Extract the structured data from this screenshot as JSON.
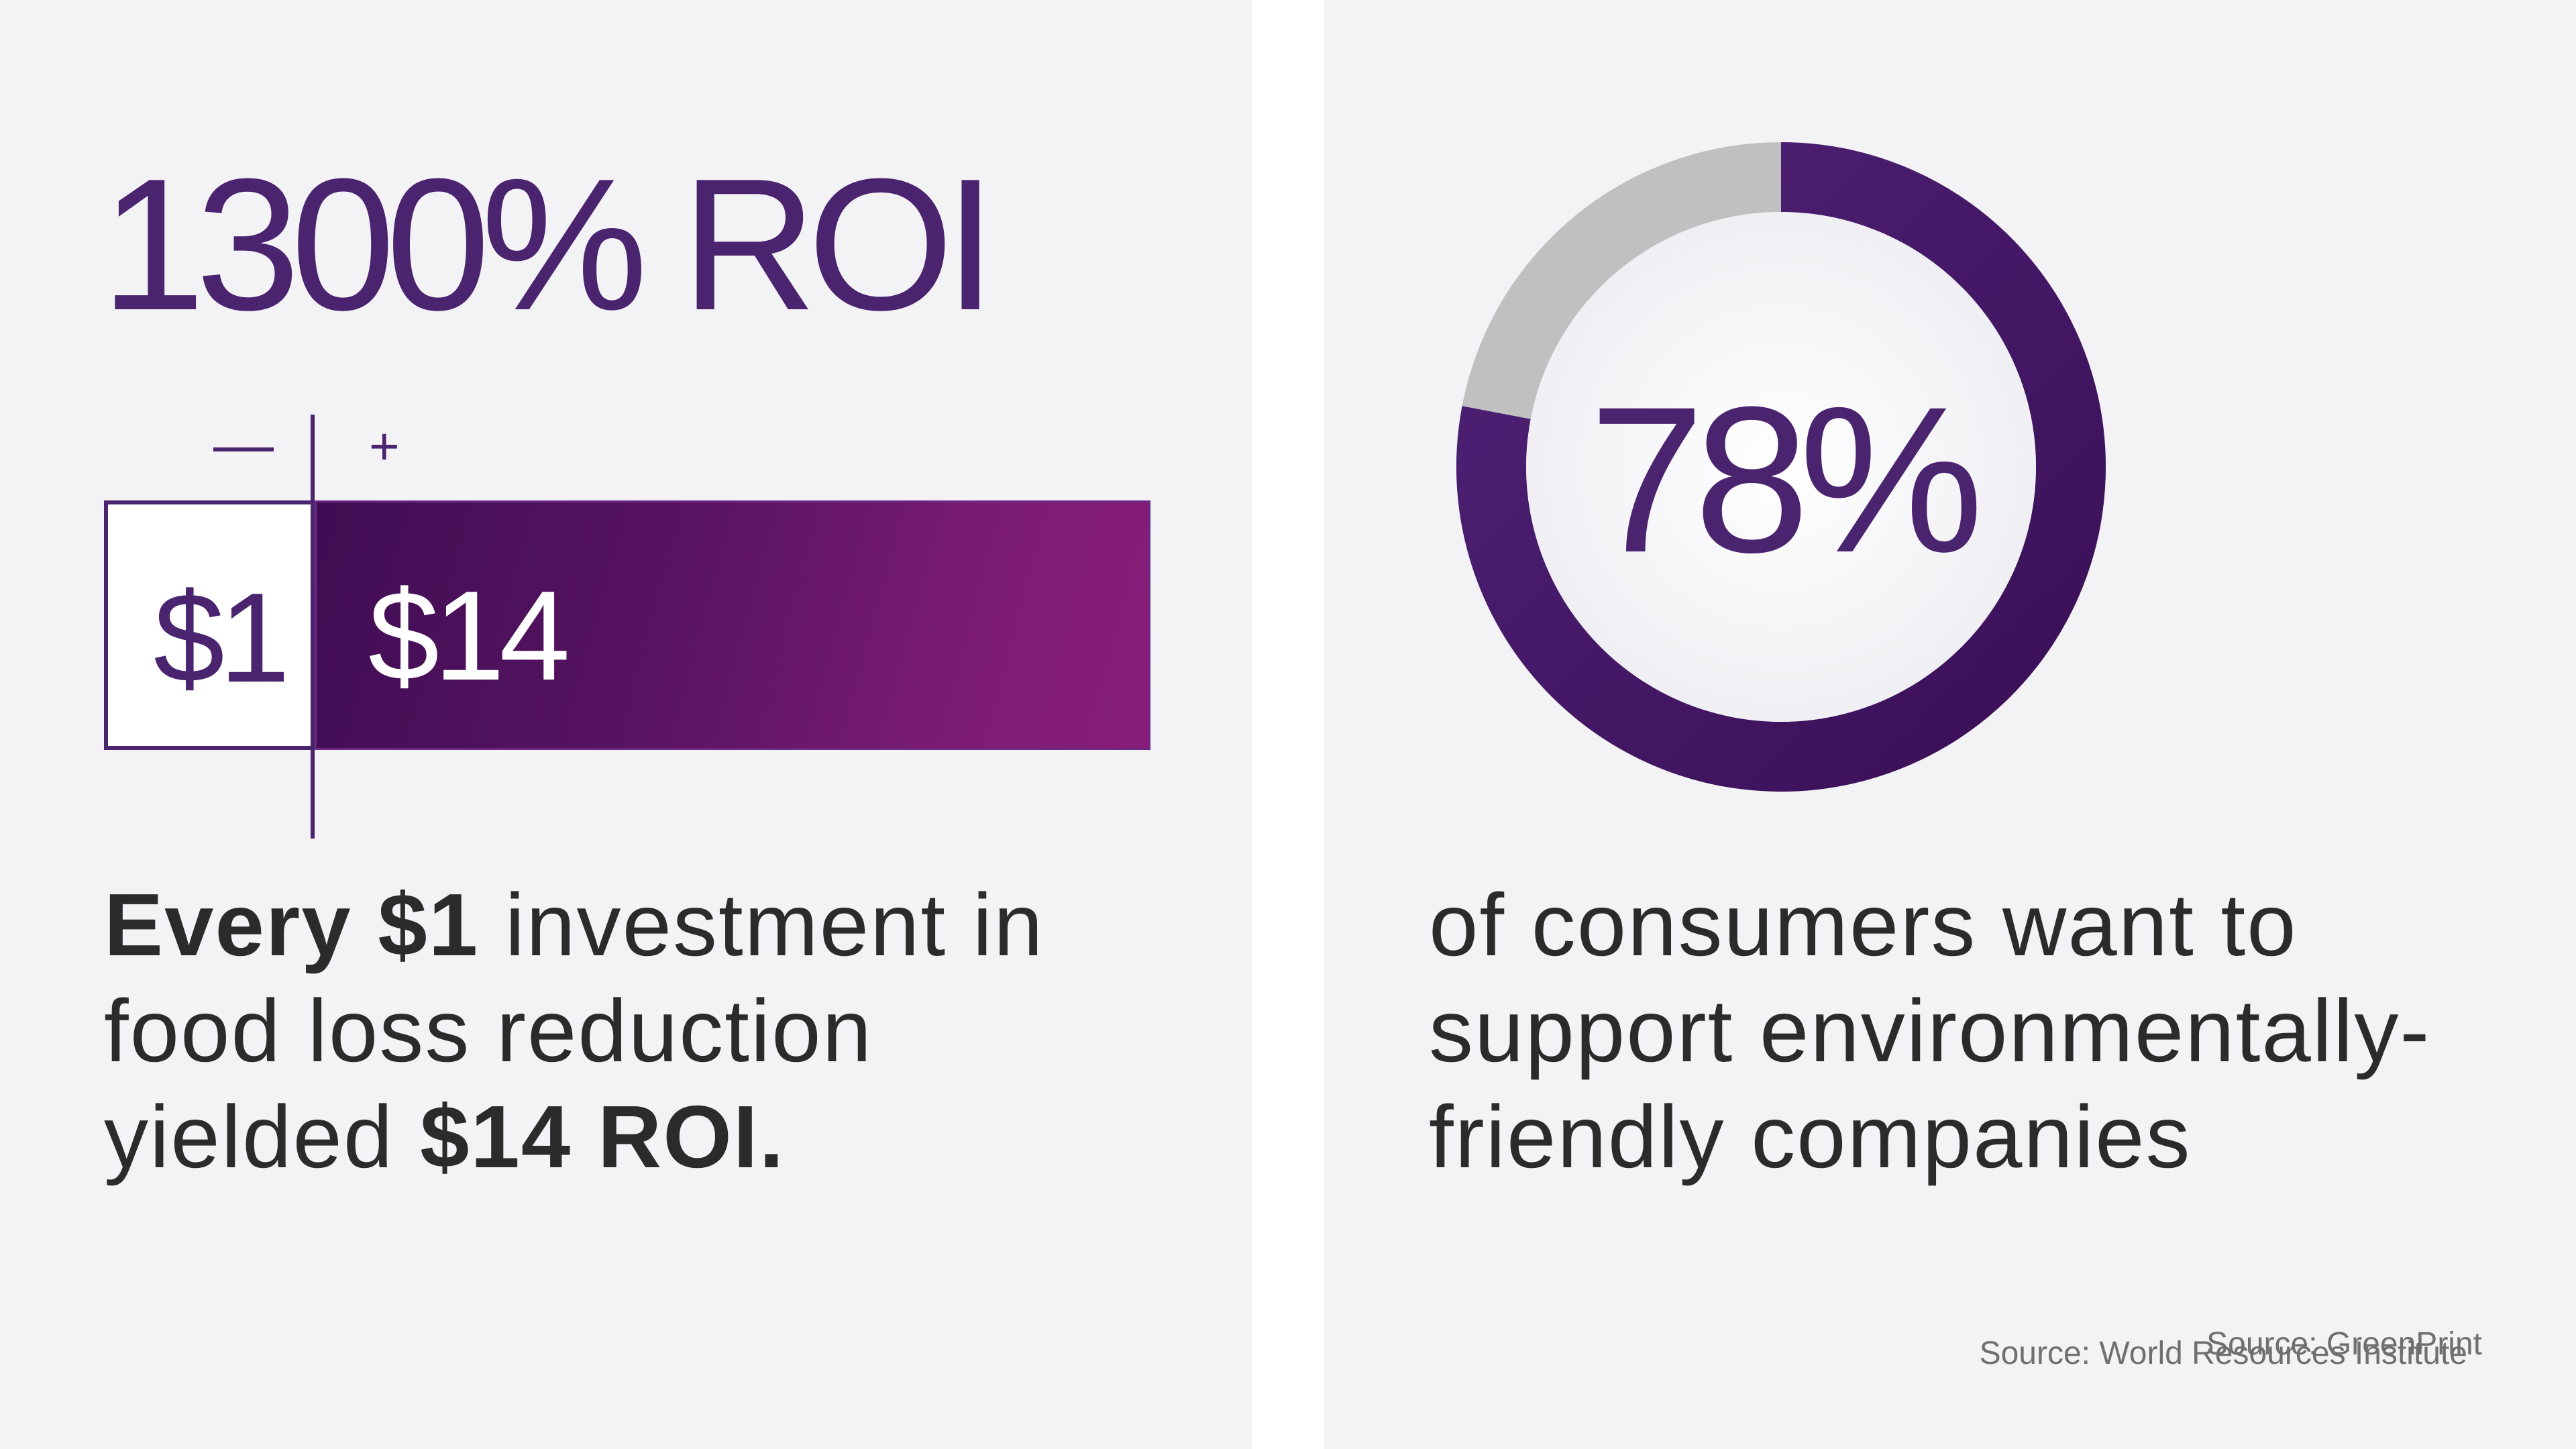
{
  "left_card": {
    "headline": "1300% ROI",
    "minus_sign": "—",
    "plus_sign": "+",
    "investment_label": "$1",
    "return_label": "$14",
    "investment_value": 1,
    "return_value": 14,
    "body": {
      "bold_1": "Every $1",
      "text_1": " investment in",
      "text_2": "food loss reduction",
      "text_3": "yielded ",
      "bold_2": "$14 ROI."
    },
    "source": "Source: World Resources Institute"
  },
  "right_card": {
    "donut_value_label": "78%",
    "donut_percent": 78,
    "body": {
      "line_1": "of consumers want to",
      "line_2": "support environmentally-",
      "line_3": "friendly companies"
    },
    "source": "Source: GreenPrint"
  },
  "colors": {
    "brand_purple": "#4b2470",
    "gradient_dark": "#3f0d53",
    "gradient_light": "#871d78",
    "remainder_gray": "#c0c0c0",
    "panel_background": "#f3f2f5",
    "body_text": "#2b2b2b",
    "source_text": "#6f6f6f"
  }
}
